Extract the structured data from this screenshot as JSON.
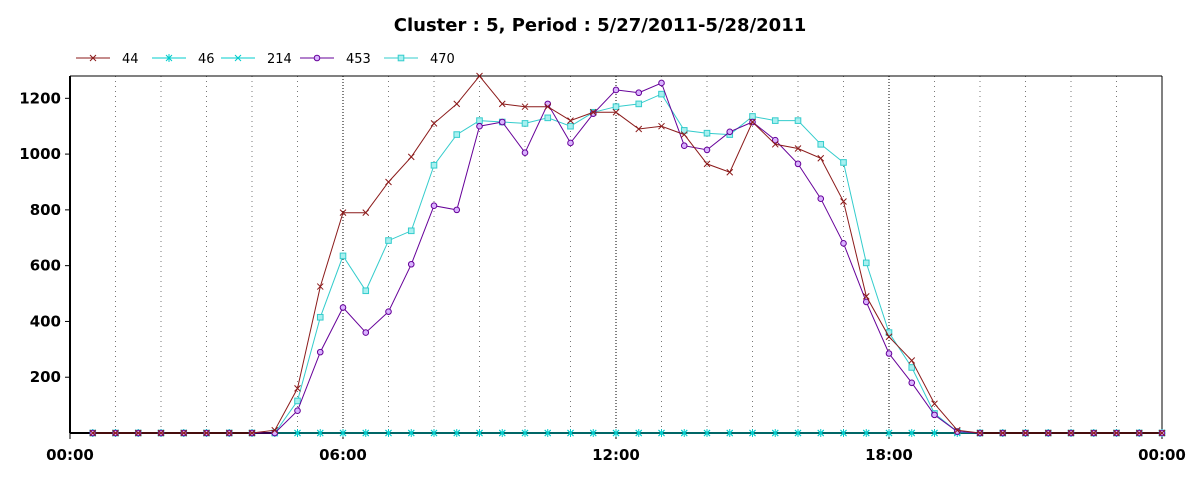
{
  "chart_data": {
    "type": "line",
    "title": "Cluster : 5, Period : 5/27/2011-5/28/2011",
    "xlabel": "",
    "ylabel": "",
    "x_range_hours": [
      0,
      24
    ],
    "ylim": [
      0,
      1280
    ],
    "x_tick_labels": [
      "00:00",
      "06:00",
      "12:00",
      "18:00",
      "00:00"
    ],
    "x_ticks_hours": [
      0,
      6,
      12,
      18,
      24
    ],
    "y_ticks": [
      200,
      400,
      600,
      800,
      1000,
      1200
    ],
    "grid": "vertical dotted",
    "legend_position": "top-left",
    "x_hours": [
      0.5,
      1,
      1.5,
      2,
      2.5,
      3,
      3.5,
      4,
      4.5,
      5,
      5.5,
      6,
      6.5,
      7,
      7.5,
      8,
      8.5,
      9,
      9.5,
      10,
      10.5,
      11,
      11.5,
      12,
      12.5,
      13,
      13.5,
      14,
      14.5,
      15,
      15.5,
      16,
      16.5,
      17,
      17.5,
      18,
      18.5,
      19,
      19.5,
      20,
      20.5,
      21,
      21.5,
      22,
      22.5,
      23,
      23.5,
      24
    ],
    "series": [
      {
        "name": "44",
        "color": "#8B1A1A",
        "marker": "x",
        "values": [
          0,
          0,
          0,
          0,
          0,
          0,
          0,
          0,
          10,
          160,
          525,
          790,
          790,
          900,
          990,
          1110,
          1180,
          1280,
          1180,
          1170,
          1170,
          1120,
          1150,
          1150,
          1090,
          1100,
          1070,
          965,
          935,
          1115,
          1035,
          1020,
          985,
          830,
          490,
          345,
          260,
          105,
          10,
          0,
          0,
          0,
          0,
          0,
          0,
          0,
          0,
          0
        ]
      },
      {
        "name": "46",
        "color": "#00CCCC",
        "marker": "asterisk",
        "values": [
          0,
          0,
          0,
          0,
          0,
          0,
          0,
          0,
          0,
          0,
          0,
          0,
          0,
          0,
          0,
          0,
          0,
          0,
          0,
          0,
          0,
          0,
          0,
          0,
          0,
          0,
          0,
          0,
          0,
          0,
          0,
          0,
          0,
          0,
          0,
          0,
          0,
          0,
          0,
          0,
          0,
          0,
          0,
          0,
          0,
          0,
          0,
          0
        ]
      },
      {
        "name": "214",
        "color": "#00CCCC",
        "marker": "x",
        "values": [
          0,
          0,
          0,
          0,
          0,
          0,
          0,
          0,
          0,
          0,
          0,
          0,
          0,
          0,
          0,
          0,
          0,
          0,
          0,
          0,
          0,
          0,
          0,
          0,
          0,
          0,
          0,
          0,
          0,
          0,
          0,
          0,
          0,
          0,
          0,
          0,
          0,
          0,
          0,
          0,
          0,
          0,
          0,
          0,
          0,
          0,
          0,
          0
        ]
      },
      {
        "name": "453",
        "color": "#660099",
        "marker": "circle",
        "values": [
          0,
          0,
          0,
          0,
          0,
          0,
          0,
          0,
          0,
          80,
          290,
          450,
          360,
          435,
          605,
          815,
          800,
          1100,
          1115,
          1005,
          1180,
          1040,
          1145,
          1230,
          1220,
          1255,
          1030,
          1015,
          1080,
          1115,
          1050,
          965,
          840,
          680,
          470,
          285,
          180,
          65,
          5,
          0,
          0,
          0,
          0,
          0,
          0,
          0,
          0,
          0
        ]
      },
      {
        "name": "470",
        "color": "#33CCCC",
        "marker": "square",
        "values": [
          0,
          0,
          0,
          0,
          0,
          0,
          0,
          0,
          0,
          115,
          415,
          635,
          510,
          690,
          725,
          960,
          1070,
          1120,
          1115,
          1110,
          1130,
          1100,
          1150,
          1170,
          1180,
          1215,
          1085,
          1075,
          1070,
          1135,
          1120,
          1120,
          1035,
          970,
          610,
          360,
          235,
          70,
          5,
          0,
          0,
          0,
          0,
          0,
          0,
          0,
          0,
          0
        ]
      }
    ]
  }
}
